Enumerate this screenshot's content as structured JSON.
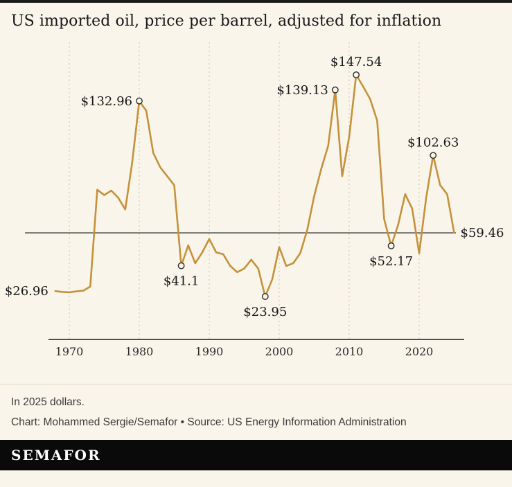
{
  "page": {
    "title": "US imported oil, price per barrel, adjusted for inflation",
    "note": "In 2025 dollars.",
    "credits": "Chart: Mohammed Sergie/Semafor • Source: US Energy Information Administration",
    "logo": "SEMAFOR"
  },
  "colors": {
    "background": "#faf5ea",
    "line": "#c5913c",
    "axis": "#1a1a1a",
    "gridline": "#c9c3b4",
    "text": "#16181a",
    "muted_text": "#3b3b3b",
    "divider": "#ddd6c6",
    "logo_bar": "#0a0a0a",
    "logo_text": "#ffffff"
  },
  "chart_data": {
    "type": "line",
    "title": "US imported oil, price per barrel, adjusted for inflation",
    "series_name": "US imported oil price per barrel, in 2025 dollars",
    "x": [
      1968,
      1969,
      1970,
      1971,
      1972,
      1973,
      1974,
      1975,
      1976,
      1977,
      1978,
      1979,
      1980,
      1981,
      1982,
      1983,
      1984,
      1985,
      1986,
      1987,
      1988,
      1989,
      1990,
      1991,
      1992,
      1993,
      1994,
      1995,
      1996,
      1997,
      1998,
      1999,
      2000,
      2001,
      2002,
      2003,
      2004,
      2005,
      2006,
      2007,
      2008,
      2009,
      2010,
      2011,
      2012,
      2013,
      2014,
      2015,
      2016,
      2017,
      2018,
      2019,
      2020,
      2021,
      2022,
      2023,
      2024,
      2025
    ],
    "values": [
      26.96,
      26.5,
      26.3,
      26.8,
      27.2,
      29.5,
      83.5,
      80.5,
      83.0,
      79.0,
      72.5,
      99.0,
      132.96,
      127.5,
      104.0,
      96.0,
      91.0,
      86.0,
      41.1,
      52.5,
      42.5,
      48.5,
      56.0,
      48.5,
      47.5,
      41.0,
      37.5,
      39.5,
      44.5,
      39.5,
      23.95,
      33.5,
      51.5,
      41.0,
      42.5,
      48.0,
      61.0,
      80.0,
      95.0,
      108.0,
      139.13,
      91.0,
      113.0,
      147.54,
      141.0,
      134.0,
      122.0,
      67.0,
      52.17,
      64.0,
      81.0,
      73.0,
      48.0,
      79.0,
      102.63,
      86.0,
      81.0,
      59.46
    ],
    "x_ticks": [
      1970,
      1980,
      1990,
      2000,
      2010,
      2020
    ],
    "xlim": [
      1967,
      2026
    ],
    "ylim": [
      0,
      160
    ],
    "grid": "vertical-dashed",
    "legend": "none",
    "reference_line": {
      "value": 59.46
    },
    "annotations": [
      {
        "label": "$26.96",
        "year": 1968,
        "value": 26.96,
        "marker": false,
        "position": "left"
      },
      {
        "label": "$132.96",
        "year": 1980,
        "value": 132.96,
        "marker": true,
        "position": "left"
      },
      {
        "label": "$41.1",
        "year": 1986,
        "value": 41.1,
        "marker": true,
        "position": "below"
      },
      {
        "label": "$23.95",
        "year": 1998,
        "value": 23.95,
        "marker": true,
        "position": "below"
      },
      {
        "label": "$139.13",
        "year": 2008,
        "value": 139.13,
        "marker": true,
        "position": "left"
      },
      {
        "label": "$147.54",
        "year": 2011,
        "value": 147.54,
        "marker": true,
        "position": "above"
      },
      {
        "label": "$52.17",
        "year": 2016,
        "value": 52.17,
        "marker": true,
        "position": "below"
      },
      {
        "label": "$102.63",
        "year": 2022,
        "value": 102.63,
        "marker": true,
        "position": "above"
      },
      {
        "label": "$59.46",
        "year": 2025,
        "value": 59.46,
        "marker": false,
        "position": "right"
      }
    ]
  }
}
